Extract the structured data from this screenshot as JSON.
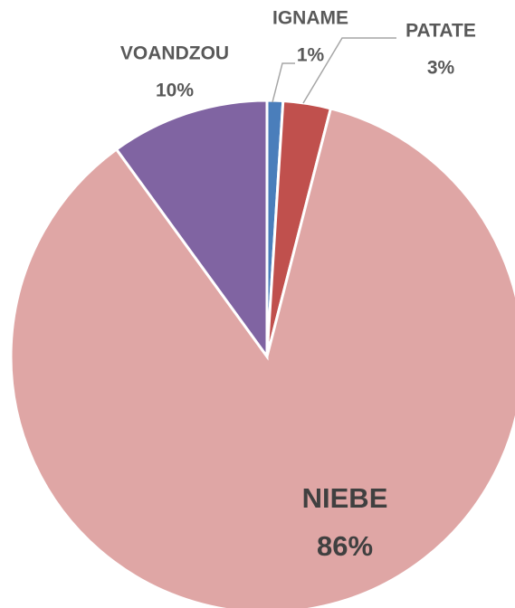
{
  "chart_data": {
    "type": "pie",
    "categories": [
      "IGNAME",
      "PATATE",
      "NIEBE",
      "VOANDZOU"
    ],
    "values": [
      1,
      3,
      86,
      10
    ],
    "value_labels": [
      "1%",
      "3%",
      "86%",
      "10%"
    ],
    "colors": [
      "#4a7ebb",
      "#c0504d",
      "#dfa6a5",
      "#8064a2"
    ]
  }
}
